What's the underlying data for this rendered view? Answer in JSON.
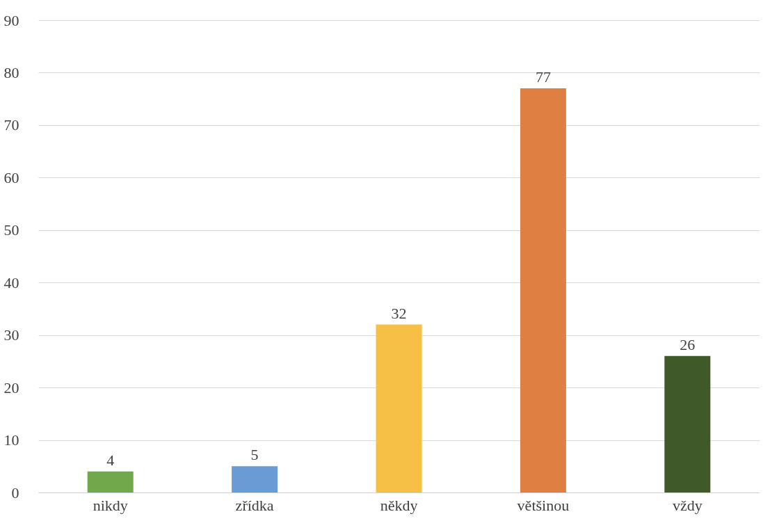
{
  "chart_data": {
    "type": "bar",
    "categories": [
      "nikdy",
      "zřídka",
      "někdy",
      "většinou",
      "vždy"
    ],
    "values": [
      4,
      5,
      32,
      77,
      26
    ],
    "colors": [
      "#70a84b",
      "#6a9bd4",
      "#f5c045",
      "#e07f42",
      "#3f5a28"
    ],
    "ylim": [
      0,
      90
    ],
    "yticks": [
      0,
      10,
      20,
      30,
      40,
      50,
      60,
      70,
      80,
      90
    ],
    "grid": "y",
    "data_labels": true
  }
}
